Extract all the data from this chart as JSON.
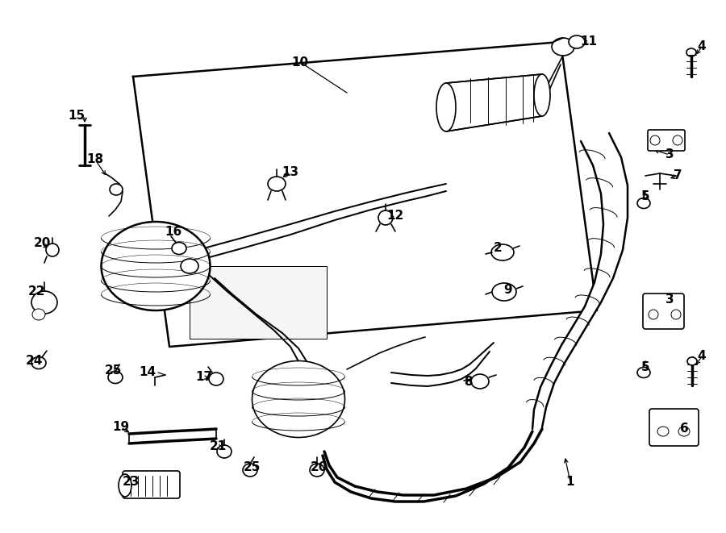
{
  "bg_color": "#ffffff",
  "line_color": "#000000",
  "figsize": [
    9.0,
    6.61
  ],
  "dpi": 100,
  "lw_thin": 0.7,
  "lw_main": 1.2,
  "lw_thick": 1.8,
  "lw_pipe": 2.5,
  "label_fontsize": 11,
  "label_fontsize_sm": 10
}
